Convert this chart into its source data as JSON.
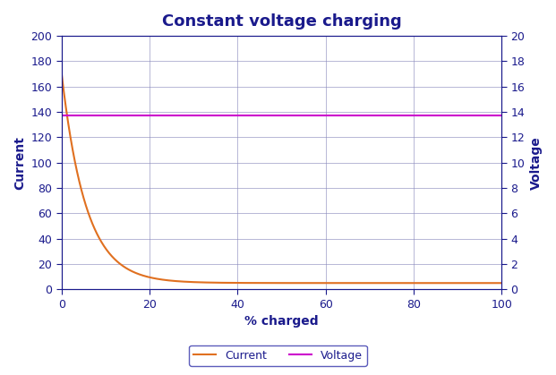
{
  "title": "Constant voltage charging",
  "title_color": "#1a1a8c",
  "title_fontsize": 13,
  "title_bold": true,
  "xlabel": "% charged",
  "ylabel_left": "Current",
  "ylabel_right": "Voltage",
  "label_color": "#1a1a8c",
  "label_fontsize": 10,
  "xlim": [
    0,
    100
  ],
  "ylim_left": [
    0,
    200
  ],
  "ylim_right": [
    0,
    20
  ],
  "xticks": [
    0,
    20,
    40,
    60,
    80,
    100
  ],
  "yticks_left": [
    0,
    20,
    40,
    60,
    80,
    100,
    120,
    140,
    160,
    180,
    200
  ],
  "yticks_right": [
    0,
    2,
    4,
    6,
    8,
    10,
    12,
    14,
    16,
    18,
    20
  ],
  "tick_color": "#1a1a8c",
  "tick_fontsize": 9,
  "current_color": "#e07020",
  "voltage_color": "#cc00cc",
  "voltage_value": 13.7,
  "current_initial": 170,
  "current_min": 5,
  "current_decay_rate": 0.18,
  "grid_color": "#8888bb",
  "grid_alpha": 0.6,
  "plot_bg_color": "#ffffff",
  "fig_bg_color": "#ffffff",
  "line_width": 1.5,
  "legend_border_color": "#3333aa"
}
